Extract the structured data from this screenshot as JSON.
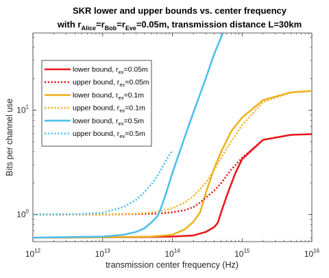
{
  "chart_data": {
    "type": "line",
    "title_line1": "SKR lower and upper bounds vs. center frequency",
    "title_line2": {
      "prefix": "with r",
      "sub_alice": "Alice",
      "sep1": "=r",
      "sub_bob": "Bob",
      "sep2": "=r",
      "sub_eve": "Eve",
      "suffix": "=0.05m, transmission distance L=30km"
    },
    "xlabel": "transmission center frequency (Hz)",
    "ylabel": "Bits per channel use",
    "xscale": "log",
    "yscale": "log",
    "xlim": [
      1000000000000.0,
      1e+16
    ],
    "ylim": [
      0.55,
      55
    ],
    "xticks": [
      {
        "value": 1000000000000.0,
        "base": "10",
        "exp": "12"
      },
      {
        "value": 10000000000000.0,
        "base": "10",
        "exp": "13"
      },
      {
        "value": 100000000000000.0,
        "base": "10",
        "exp": "14"
      },
      {
        "value": 1000000000000000.0,
        "base": "10",
        "exp": "15"
      },
      {
        "value": 1e+16,
        "base": "10",
        "exp": "16"
      }
    ],
    "yticks": [
      {
        "value": 1,
        "base": "10",
        "exp": "0"
      },
      {
        "value": 10,
        "base": "10",
        "exp": "1"
      }
    ],
    "grid": false,
    "legend_position": "top-left",
    "series": [
      {
        "name": "lower bound, r",
        "name_sub": "ex",
        "name_suffix": "=0.05m",
        "color": "#e8191e",
        "style": "solid",
        "x": [
          1000000000000.0,
          10000000000000.0,
          50000000000000.0,
          100000000000000.0,
          200000000000000.0,
          300000000000000.0,
          400000000000000.0,
          450000000000000.0,
          500000000000000.0,
          600000000000000.0,
          800000000000000.0,
          1000000000000000.0,
          2000000000000000.0,
          5000000000000000.0,
          1e+16
        ],
        "y": [
          0.6,
          0.605,
          0.61,
          0.615,
          0.63,
          0.68,
          0.76,
          0.84,
          1.05,
          1.5,
          2.5,
          3.4,
          5.2,
          5.8,
          5.9
        ]
      },
      {
        "name": "upper bound, r",
        "name_sub": "ex",
        "name_suffix": "=0.05m",
        "color": "#e8191e",
        "style": "dotted",
        "x": [
          1000000000000.0,
          10000000000000.0,
          30000000000000.0,
          60000000000000.0,
          100000000000000.0,
          150000000000000.0,
          200000000000000.0,
          250000000000000.0,
          300000000000000.0,
          400000000000000.0,
          500000000000000.0,
          700000000000000.0,
          1000000000000000.0,
          2000000000000000.0,
          5000000000000000.0,
          1e+16
        ],
        "y": [
          1.0,
          1.0,
          1.01,
          1.02,
          1.05,
          1.1,
          1.18,
          1.3,
          1.45,
          1.7,
          2.0,
          2.7,
          3.5,
          5.2,
          5.8,
          5.9
        ]
      },
      {
        "name": "lower bound, r",
        "name_sub": "ex",
        "name_suffix": "=0.1m",
        "color": "#eeb220",
        "style": "solid",
        "x": [
          1000000000000.0,
          10000000000000.0,
          50000000000000.0,
          100000000000000.0,
          150000000000000.0,
          200000000000000.0,
          250000000000000.0,
          300000000000000.0,
          400000000000000.0,
          500000000000000.0,
          700000000000000.0,
          1000000000000000.0,
          2000000000000000.0,
          5000000000000000.0,
          1e+16
        ],
        "y": [
          0.6,
          0.605,
          0.615,
          0.64,
          0.72,
          0.85,
          1.05,
          1.6,
          2.8,
          4.0,
          6.3,
          8.5,
          12.5,
          14.8,
          15.3
        ]
      },
      {
        "name": "upper bound, r",
        "name_sub": "ex",
        "name_suffix": "=0.1m",
        "color": "#eeb220",
        "style": "dotted",
        "x": [
          1000000000000.0,
          10000000000000.0,
          30000000000000.0,
          60000000000000.0,
          100000000000000.0,
          150000000000000.0,
          200000000000000.0,
          300000000000000.0,
          400000000000000.0,
          600000000000000.0,
          1000000000000000.0,
          2000000000000000.0,
          5000000000000000.0,
          1e+16
        ],
        "y": [
          1.0,
          1.0,
          1.02,
          1.06,
          1.15,
          1.3,
          1.5,
          2.0,
          2.7,
          4.3,
          7.2,
          12.0,
          14.8,
          15.3
        ]
      },
      {
        "name": "lower bound, r",
        "name_sub": "ex",
        "name_suffix": "=0.5m",
        "color": "#4dbeee",
        "style": "solid",
        "x": [
          1000000000000.0,
          10000000000000.0,
          20000000000000.0,
          30000000000000.0,
          40000000000000.0,
          50000000000000.0,
          60000000000000.0,
          65000000000000.0,
          70000000000000.0,
          80000000000000.0,
          100000000000000.0,
          150000000000000.0,
          200000000000000.0,
          300000000000000.0,
          400000000000000.0,
          530000000000000.0
        ],
        "y": [
          0.6,
          0.615,
          0.64,
          0.68,
          0.74,
          0.84,
          0.95,
          1.05,
          1.2,
          1.55,
          2.5,
          5.5,
          9.5,
          20,
          35,
          55
        ]
      },
      {
        "name": "upper bound, r",
        "name_sub": "ex",
        "name_suffix": "=0.5m",
        "color": "#4dbeee",
        "style": "dotted",
        "x": [
          1000000000000.0,
          5000000000000.0,
          10000000000000.0,
          20000000000000.0,
          30000000000000.0,
          40000000000000.0,
          50000000000000.0,
          60000000000000.0,
          70000000000000.0,
          80000000000000.0,
          90000000000000.0,
          100000000000000.0
        ],
        "y": [
          1.0,
          1.01,
          1.04,
          1.18,
          1.38,
          1.65,
          1.95,
          2.3,
          2.75,
          3.25,
          3.7,
          4.1
        ]
      }
    ]
  }
}
